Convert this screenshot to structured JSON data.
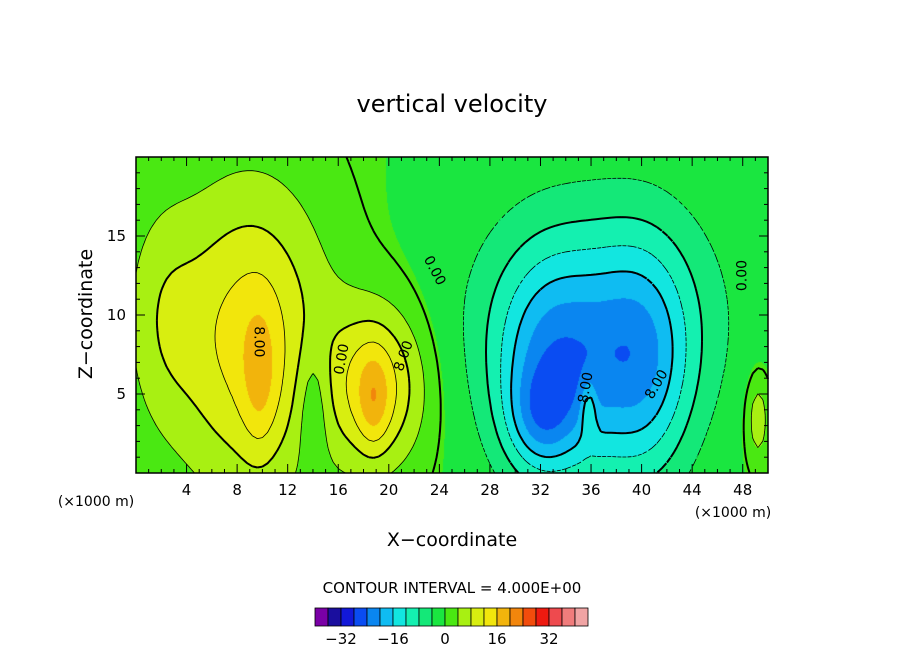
{
  "chart_data": {
    "type": "heatmap",
    "title": "vertical velocity",
    "xlabel": "X−coordinate",
    "ylabel": "Z−coordinate",
    "x_unit": "(×1000 m)",
    "y_unit": "(×1000 m)",
    "xlim": [
      0,
      50
    ],
    "ylim": [
      0,
      20
    ],
    "x_ticks": [
      4,
      8,
      12,
      16,
      20,
      24,
      28,
      32,
      36,
      40,
      44,
      48
    ],
    "y_ticks": [
      5,
      10,
      15
    ],
    "contour_interval_text": "CONTOUR INTERVAL = 4.000E+00",
    "contour_labels": [
      {
        "text": "0.00",
        "x": 23.6,
        "z": 12.8,
        "angle": 62
      },
      {
        "text": "8.00",
        "x": 9.7,
        "z": 8.3,
        "angle": 90
      },
      {
        "text": "0.00",
        "x": 16.3,
        "z": 7.2,
        "angle": -80
      },
      {
        "text": "8.00",
        "x": 21.2,
        "z": 7.4,
        "angle": -70
      },
      {
        "text": "0.00",
        "x": 48.0,
        "z": 12.5,
        "angle": -90
      },
      {
        "text": "8.00",
        "x": 35.6,
        "z": 5.4,
        "angle": -80
      },
      {
        "text": "8.00",
        "x": 41.2,
        "z": 5.6,
        "angle": -60
      }
    ],
    "features": [
      {
        "x": 9.0,
        "z": 8.5,
        "value": 14,
        "rx": 6.0,
        "rz": 9.5
      },
      {
        "x": 9.8,
        "z": 5.8,
        "value": 6,
        "rx": 1.4,
        "rz": 4.5
      },
      {
        "x": 19.0,
        "z": 5.5,
        "value": 14,
        "rx": 3.8,
        "rz": 5.0
      },
      {
        "x": 18.8,
        "z": 4.5,
        "value": 6,
        "rx": 1.2,
        "rz": 3.0
      },
      {
        "x": 14.0,
        "z": 4.5,
        "value": -6,
        "rx": 1.3,
        "rz": 4.2
      },
      {
        "x": 33.0,
        "z": 6.0,
        "value": -16,
        "rx": 4.5,
        "rz": 7.0
      },
      {
        "x": 40.0,
        "z": 6.5,
        "value": -14,
        "rx": 4.0,
        "rz": 7.5
      },
      {
        "x": 36.5,
        "z": 10.0,
        "value": -10,
        "rx": 10.0,
        "rz": 8.0
      },
      {
        "x": 32.0,
        "z": 3.5,
        "value": -8,
        "rx": 2.5,
        "rz": 3.0
      },
      {
        "x": 35.8,
        "z": 4.0,
        "value": 8,
        "rx": 0.6,
        "rz": 1.8
      },
      {
        "x": 49.2,
        "z": 3.5,
        "value": 7,
        "rx": 1.0,
        "rz": 3.0
      },
      {
        "x": 2.0,
        "z": 10.0,
        "value": 5,
        "rx": 3.0,
        "rz": 7.0
      }
    ],
    "colorbar": {
      "colors": [
        "#7a00a6",
        "#1a0e9e",
        "#1218d8",
        "#0a4cf2",
        "#0a86f0",
        "#0fbcf2",
        "#12e6e0",
        "#14f0b0",
        "#14e878",
        "#1ae640",
        "#4ae812",
        "#a8f012",
        "#d8ee10",
        "#f2e60c",
        "#f2b40c",
        "#f2860c",
        "#f24c0c",
        "#ee1a10",
        "#ee4a4e",
        "#f07c7c",
        "#f0a4a4"
      ],
      "tick_labels": [
        "−32",
        "−16",
        "0",
        "16",
        "32"
      ]
    }
  }
}
